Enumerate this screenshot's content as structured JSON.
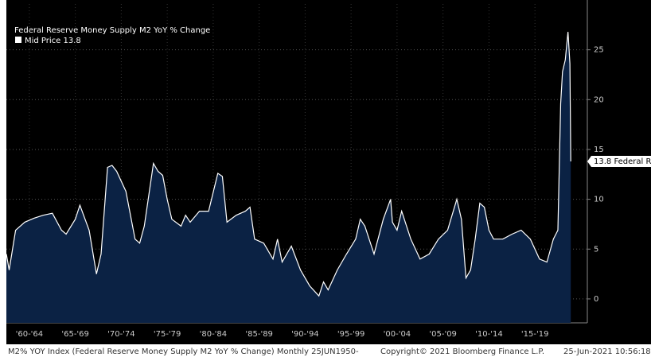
{
  "chart_data": {
    "type": "area",
    "title": "Federal Reserve Money Supply M2 YoY % Change",
    "legend": "Mid Price 13.8",
    "last_label": "13.8 Federal R",
    "footer_left": "M2% YOY Index (Federal Reserve Money Supply M2 YoY % Change)  Monthly 25JUN1950-",
    "footer_mid": "Copyright© 2021 Bloomberg Finance L.P.",
    "footer_right": "25-Jun-2021 10:56:18",
    "color": "#ffffff",
    "fill": "#0b2244",
    "grid": true,
    "x": [
      1960,
      1960.3,
      1961,
      1962,
      1963,
      1964,
      1965,
      1966,
      1966.5,
      1967.5,
      1968,
      1969,
      1969.8,
      1970.3,
      1971,
      1971.5,
      1972,
      1973,
      1974,
      1974.5,
      1975,
      1976,
      1976.5,
      1977,
      1977.5,
      1978,
      1979,
      1979.5,
      1980,
      1981,
      1982,
      1983,
      1983.5,
      1984,
      1985,
      1986,
      1986.5,
      1987,
      1988,
      1989,
      1989.5,
      1990,
      1991,
      1992,
      1993,
      1994,
      1994.5,
      1995,
      1996,
      1997,
      1998,
      1998.5,
      1999,
      2000,
      2001,
      2001.8,
      2002,
      2002.5,
      2003,
      2004,
      2005,
      2006,
      2007,
      2008,
      2009,
      2009.5,
      2010,
      2010.5,
      2011,
      2011.5,
      2012,
      2012.5,
      2013,
      2014,
      2015,
      2016,
      2017,
      2018,
      2018.8,
      2019.5,
      2020,
      2020.3,
      2020.5,
      2020.8,
      2021.1,
      2021.3,
      2021.4
    ],
    "values": [
      4.5,
      2.9,
      6.9,
      7.7,
      8.1,
      8.4,
      8.6,
      6.9,
      6.5,
      8,
      9.4,
      6.9,
      2.5,
      4.5,
      13.2,
      13.4,
      12.8,
      10.8,
      6,
      5.6,
      7.3,
      13.6,
      12.8,
      12.4,
      10,
      8,
      7.3,
      8.4,
      7.7,
      8.8,
      8.8,
      12.6,
      12.3,
      7.7,
      8.4,
      8.8,
      9.2,
      6,
      5.6,
      4,
      6,
      3.7,
      5.3,
      2.9,
      1.3,
      0.3,
      1.7,
      0.9,
      2.9,
      4.5,
      6,
      8,
      7.3,
      4.5,
      8,
      10,
      7.7,
      6.9,
      8.8,
      6,
      4,
      4.5,
      6,
      6.9,
      10,
      8,
      2.1,
      2.9,
      6,
      9.6,
      9.2,
      6.9,
      6,
      6,
      6.5,
      6.9,
      6,
      4,
      3.7,
      6,
      6.9,
      19.6,
      22.8,
      24,
      26.8,
      23.6,
      13.8
    ],
    "xlim": [
      1960,
      2023.2
    ],
    "ylim": [
      -2.4,
      29.6
    ],
    "yticks": [
      0,
      5,
      10,
      15,
      20,
      25
    ],
    "xticks": [
      {
        "value": 1962.5,
        "label": "'60-'64"
      },
      {
        "value": 1967.5,
        "label": "'65-'69"
      },
      {
        "value": 1972.5,
        "label": "'70-'74"
      },
      {
        "value": 1977.5,
        "label": "'75-'79"
      },
      {
        "value": 1982.5,
        "label": "'80-'84"
      },
      {
        "value": 1987.5,
        "label": "'85-'89"
      },
      {
        "value": 1992.5,
        "label": "'90-'94"
      },
      {
        "value": 1997.5,
        "label": "'95-'99"
      },
      {
        "value": 2002.5,
        "label": "'00-'04"
      },
      {
        "value": 2007.5,
        "label": "'05-'09"
      },
      {
        "value": 2012.5,
        "label": "'10-'14"
      },
      {
        "value": 2017.5,
        "label": "'15-'19"
      }
    ]
  }
}
